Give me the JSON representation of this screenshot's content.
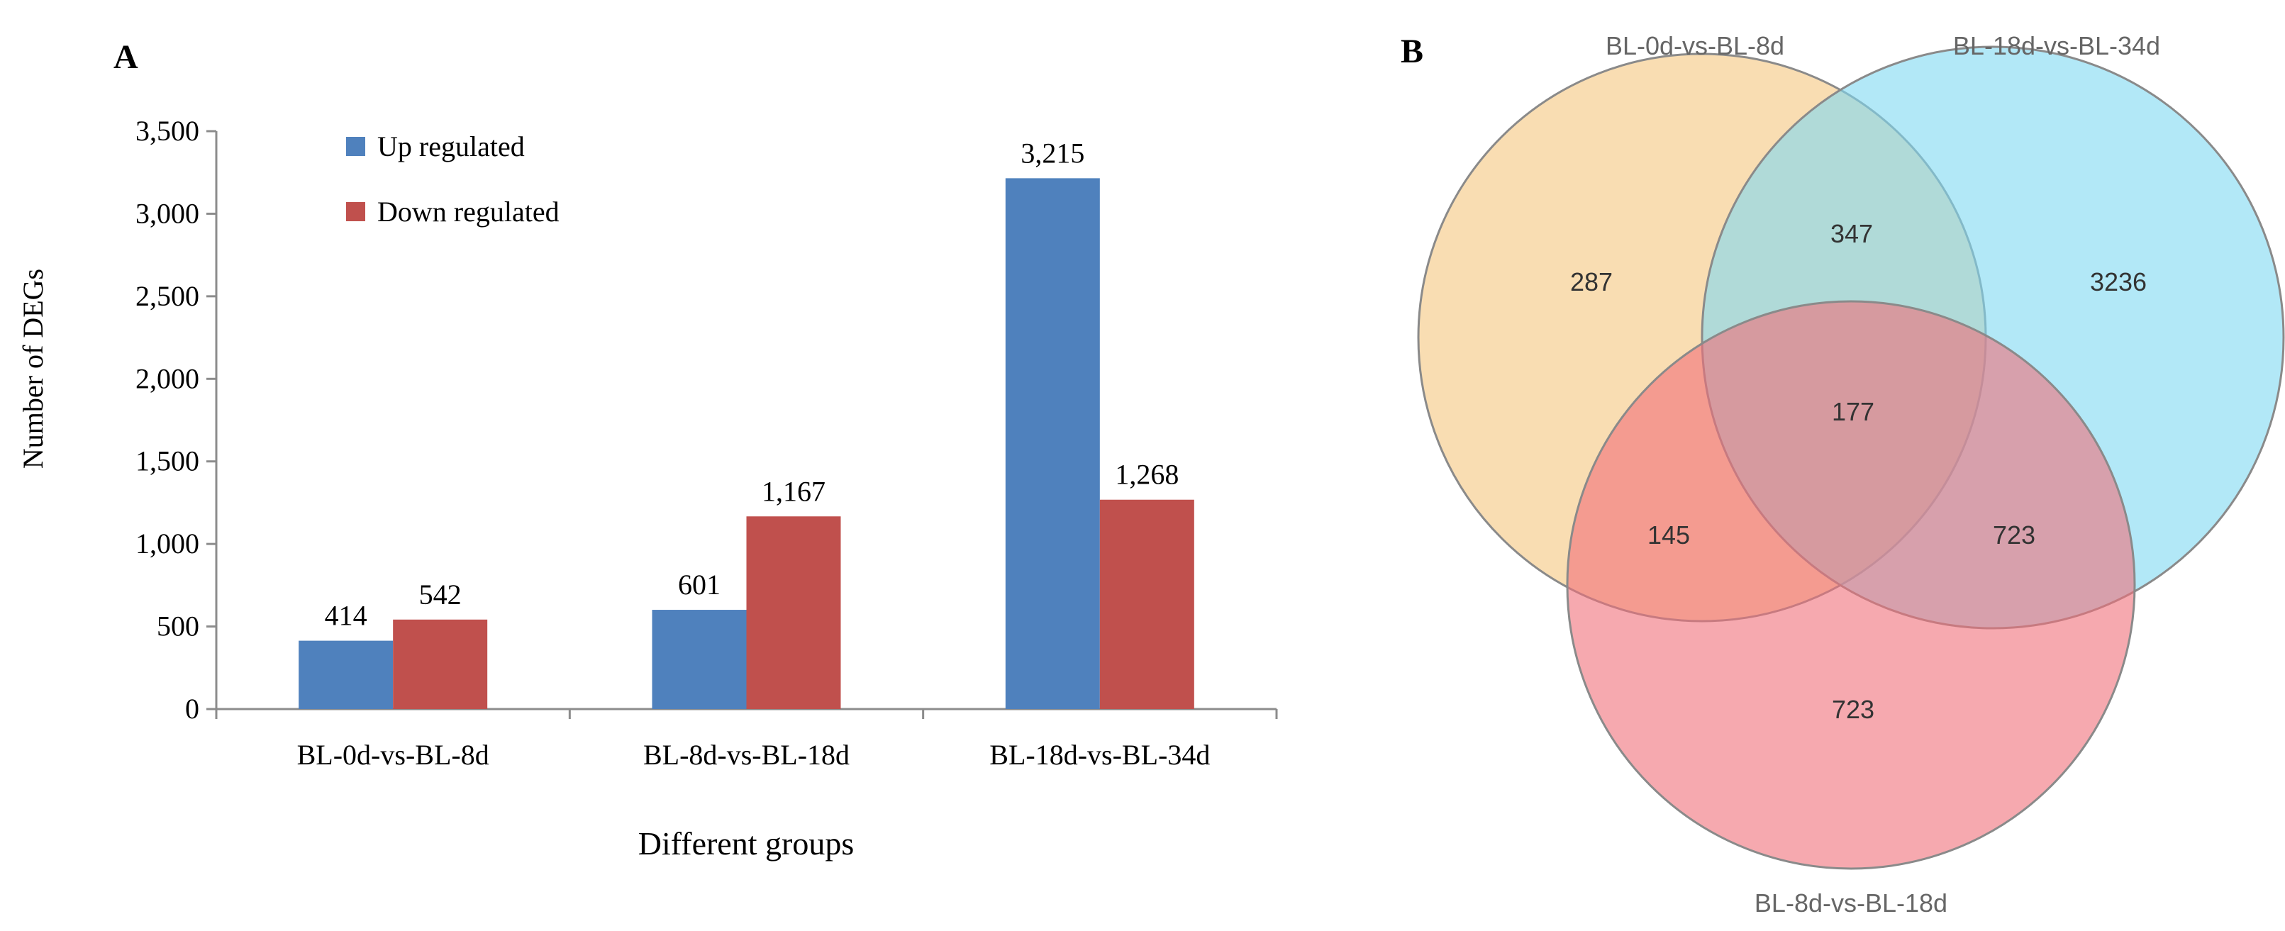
{
  "chart_data": [
    {
      "type": "bar",
      "panel_label": "A",
      "title": "",
      "xlabel": "Different groups",
      "ylabel": "Number of DEGs",
      "categories": [
        "BL-0d-vs-BL-8d",
        "BL-8d-vs-BL-18d",
        "BL-18d-vs-BL-34d"
      ],
      "series": [
        {
          "name": "Up regulated",
          "color": "#4f81bd",
          "values": [
            414,
            601,
            3215
          ],
          "labels": [
            "414",
            "601",
            "3,215"
          ]
        },
        {
          "name": "Down regulated",
          "color": "#c0504d",
          "values": [
            542,
            1167,
            1268
          ],
          "labels": [
            "542",
            "1,167",
            "1,268"
          ]
        }
      ],
      "ylim": [
        0,
        3500
      ],
      "yticks": [
        0,
        500,
        1000,
        1500,
        2000,
        2500,
        3000,
        3500
      ],
      "ytick_labels": [
        "0",
        "500",
        "1,000",
        "1,500",
        "2,000",
        "2,500",
        "3,000",
        "3,500"
      ],
      "legend_position": "top-left",
      "grid": false
    },
    {
      "type": "venn",
      "panel_label": "B",
      "sets": [
        {
          "name": "BL-0d-vs-BL-8d",
          "color": "#f5c77e"
        },
        {
          "name": "BL-18d-vs-BL-34d",
          "color": "#7fd9f2"
        },
        {
          "name": "BL-8d-vs-BL-18d",
          "color": "#f0707a"
        }
      ],
      "regions": {
        "only_a": "287",
        "a_b": "347",
        "only_b": "3236",
        "a_b_c": "177",
        "a_c": "145",
        "b_c": "723",
        "only_c": "723"
      }
    }
  ]
}
